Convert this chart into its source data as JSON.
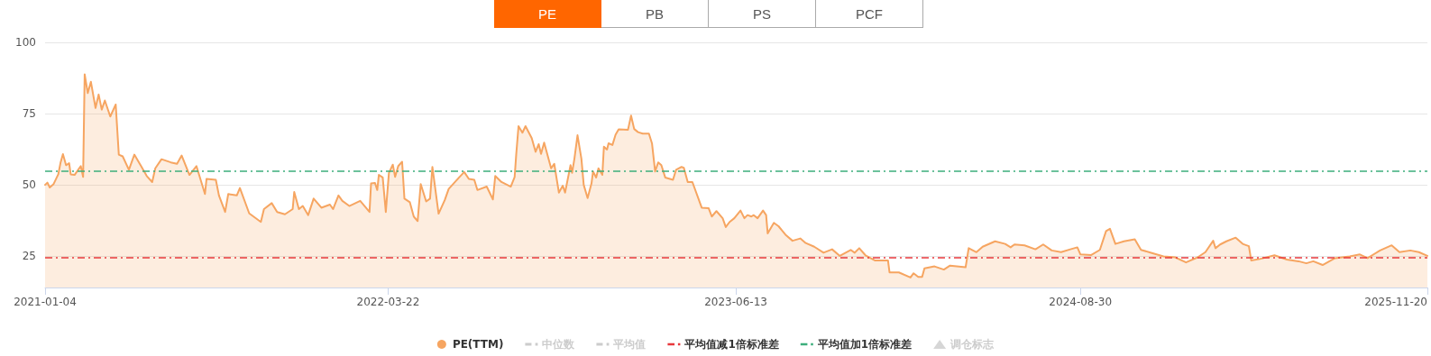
{
  "chart_data": {
    "type": "area",
    "annotations": [
      "PE",
      "PB",
      "PS",
      "PCF"
    ],
    "xlim": [
      "2021-01-04",
      "2025-11-20"
    ],
    "xticks": [
      "2021-01-04",
      "2022-03-22",
      "2023-06-13",
      "2024-08-30",
      "2025-11-20"
    ],
    "ylim": [
      14,
      100
    ],
    "yticks": [
      25,
      50,
      75,
      100
    ],
    "grid": "y",
    "legend": "bottom",
    "series": [
      {
        "name": "PE(TTM)",
        "color": "#f6a561",
        "x": [
          "2021-01-04",
          "2021-01-07",
          "2021-01-10",
          "2021-01-15",
          "2021-01-21",
          "2021-01-24",
          "2021-01-27",
          "2021-01-31",
          "2021-02-04",
          "2021-02-06",
          "2021-02-11",
          "2021-02-19",
          "2021-02-22",
          "2021-02-24",
          "2021-02-28",
          "2021-03-04",
          "2021-03-10",
          "2021-03-14",
          "2021-03-18",
          "2021-03-22",
          "2021-03-29",
          "2021-04-05",
          "2021-04-09",
          "2021-04-14",
          "2021-04-22",
          "2021-04-29",
          "2021-05-07",
          "2021-05-15",
          "2021-05-22",
          "2021-05-26",
          "2021-06-03",
          "2021-06-15",
          "2021-06-23",
          "2021-06-29",
          "2021-07-09",
          "2021-07-18",
          "2021-07-29",
          "2021-07-31",
          "2021-08-12",
          "2021-08-16",
          "2021-08-24",
          "2021-08-28",
          "2021-09-08",
          "2021-09-12",
          "2021-09-24",
          "2021-10-09",
          "2021-10-13",
          "2021-10-23",
          "2021-10-30",
          "2021-11-09",
          "2021-11-19",
          "2021-11-21",
          "2021-11-27",
          "2021-12-02",
          "2021-12-09",
          "2021-12-16",
          "2021-12-26",
          "2022-01-06",
          "2022-01-10",
          "2022-01-17",
          "2022-01-22",
          "2022-01-31",
          "2022-02-14",
          "2022-02-26",
          "2022-02-28",
          "2022-03-05",
          "2022-03-08",
          "2022-03-10",
          "2022-03-15",
          "2022-03-19",
          "2022-03-23",
          "2022-03-28",
          "2022-03-31",
          "2022-04-04",
          "2022-04-09",
          "2022-04-12",
          "2022-04-19",
          "2022-04-24",
          "2022-04-29",
          "2022-05-03",
          "2022-05-10",
          "2022-05-15",
          "2022-05-18",
          "2022-05-26",
          "2022-06-03",
          "2022-06-08",
          "2022-06-18",
          "2022-06-28",
          "2022-07-04",
          "2022-07-11",
          "2022-07-15",
          "2022-07-27",
          "2022-08-04",
          "2022-08-07",
          "2022-08-15",
          "2022-08-27",
          "2022-09-01",
          "2022-09-03",
          "2022-09-06",
          "2022-09-11",
          "2022-09-15",
          "2022-09-23",
          "2022-09-28",
          "2022-10-02",
          "2022-10-05",
          "2022-10-09",
          "2022-10-18",
          "2022-10-22",
          "2022-10-28",
          "2022-11-02",
          "2022-11-05",
          "2022-11-12",
          "2022-11-14",
          "2022-11-17",
          "2022-11-21",
          "2022-11-26",
          "2022-11-29",
          "2022-12-04",
          "2022-12-09",
          "2022-12-11",
          "2022-12-15",
          "2022-12-18",
          "2022-12-23",
          "2022-12-25",
          "2022-12-29",
          "2022-12-31",
          "2023-01-05",
          "2023-01-09",
          "2023-01-13",
          "2023-01-25",
          "2023-01-29",
          "2023-02-02",
          "2023-02-07",
          "2023-02-13",
          "2023-02-21",
          "2023-02-25",
          "2023-03-01",
          "2023-03-05",
          "2023-03-09",
          "2023-03-14",
          "2023-03-24",
          "2023-03-28",
          "2023-04-04",
          "2023-04-07",
          "2023-04-12",
          "2023-04-18",
          "2023-04-30",
          "2023-05-09",
          "2023-05-13",
          "2023-05-19",
          "2023-05-27",
          "2023-05-31",
          "2023-06-05",
          "2023-06-11",
          "2023-06-19",
          "2023-06-24",
          "2023-06-28",
          "2023-07-03",
          "2023-07-06",
          "2023-07-11",
          "2023-07-18",
          "2023-07-22",
          "2023-07-24",
          "2023-08-01",
          "2023-08-07",
          "2023-08-16",
          "2023-08-25",
          "2023-09-04",
          "2023-09-11",
          "2023-09-22",
          "2023-10-04",
          "2023-10-15",
          "2023-10-25",
          "2023-11-08",
          "2023-11-13",
          "2023-11-19",
          "2023-11-27",
          "2023-12-09",
          "2023-12-26",
          "2023-12-28",
          "2024-01-09",
          "2024-01-24",
          "2024-01-28",
          "2024-02-03",
          "2024-02-08",
          "2024-02-11",
          "2024-02-24",
          "2024-03-07",
          "2024-03-15",
          "2024-04-04",
          "2024-04-08",
          "2024-04-18",
          "2024-04-26",
          "2024-05-12",
          "2024-05-25",
          "2024-06-01",
          "2024-06-06",
          "2024-06-19",
          "2024-07-03",
          "2024-07-13",
          "2024-07-24",
          "2024-08-05",
          "2024-08-17",
          "2024-08-26",
          "2024-08-30",
          "2024-09-13",
          "2024-09-24",
          "2024-10-02",
          "2024-10-07",
          "2024-10-14",
          "2024-10-25",
          "2024-11-08",
          "2024-11-16",
          "2024-11-29",
          "2024-12-15",
          "2024-12-30",
          "2025-01-13",
          "2025-01-28",
          "2025-02-07",
          "2025-02-17",
          "2025-02-20",
          "2025-02-26",
          "2025-03-06",
          "2025-03-18",
          "2025-03-27",
          "2025-04-04",
          "2025-04-07",
          "2025-04-18",
          "2025-05-07",
          "2025-05-23",
          "2025-06-07",
          "2025-06-17",
          "2025-06-26",
          "2025-07-08",
          "2025-07-24",
          "2025-08-12",
          "2025-08-25",
          "2025-09-04",
          "2025-09-20",
          "2025-10-05",
          "2025-10-15",
          "2025-10-29",
          "2025-11-09",
          "2025-11-20"
        ],
        "values": [
          50.0,
          50.8,
          49.1,
          50.3,
          53.7,
          57.9,
          60.8,
          56.9,
          57.6,
          53.7,
          53.5,
          56.6,
          52.8,
          88.8,
          82.2,
          86.2,
          77.0,
          81.7,
          76.4,
          79.6,
          74.0,
          78.2,
          60.6,
          60.0,
          55.3,
          60.6,
          56.9,
          53.1,
          51.0,
          55.8,
          59.0,
          57.9,
          57.4,
          60.3,
          53.5,
          56.6,
          46.8,
          52.1,
          51.8,
          46.3,
          40.5,
          46.8,
          46.3,
          48.9,
          40.0,
          37.0,
          41.5,
          43.6,
          40.5,
          39.7,
          41.5,
          47.5,
          41.5,
          42.6,
          39.4,
          45.2,
          42.0,
          43.1,
          41.5,
          46.3,
          44.4,
          42.6,
          44.4,
          40.5,
          50.5,
          50.7,
          48.2,
          53.5,
          52.6,
          40.5,
          54.2,
          57.1,
          52.8,
          56.6,
          58.1,
          45.2,
          43.9,
          38.9,
          37.3,
          50.3,
          44.2,
          45.2,
          56.3,
          39.9,
          44.7,
          48.6,
          51.6,
          54.5,
          52.1,
          51.8,
          48.2,
          49.4,
          44.9,
          53.1,
          51.0,
          49.4,
          52.8,
          60.6,
          70.6,
          68.3,
          70.6,
          66.4,
          61.6,
          64.3,
          60.9,
          64.8,
          55.8,
          57.4,
          47.3,
          49.7,
          47.3,
          56.9,
          54.2,
          59.2,
          67.4,
          59.2,
          50.0,
          45.4,
          50.5,
          54.7,
          52.6,
          55.8,
          53.5,
          63.4,
          62.4,
          64.6,
          64.0,
          67.6,
          69.5,
          69.3,
          74.3,
          69.6,
          68.5,
          68.0,
          68.0,
          64.5,
          54.7,
          57.9,
          56.9,
          52.6,
          51.8,
          55.3,
          56.3,
          56.0,
          51.0,
          51.0,
          42.0,
          41.8,
          38.9,
          40.8,
          38.3,
          35.2,
          37.0,
          38.3,
          41.0,
          38.3,
          39.4,
          38.9,
          39.4,
          38.3,
          41.0,
          39.4,
          33.0,
          36.7,
          35.5,
          32.5,
          30.4,
          31.2,
          29.6,
          28.3,
          26.2,
          27.4,
          25.1,
          27.2,
          26.2,
          27.8,
          25.3,
          23.5,
          23.5,
          19.3,
          19.3,
          17.5,
          19.0,
          17.7,
          17.7,
          20.7,
          21.4,
          20.3,
          21.7,
          21.1,
          27.8,
          26.4,
          28.3,
          30.2,
          29.3,
          28.1,
          29.1,
          28.8,
          27.4,
          29.1,
          27.0,
          26.4,
          27.4,
          28.1,
          25.6,
          25.4,
          27.2,
          33.8,
          34.6,
          29.3,
          30.2,
          30.9,
          27.2,
          26.2,
          24.9,
          24.6,
          22.8,
          24.6,
          26.4,
          30.4,
          27.8,
          29.1,
          30.2,
          31.5,
          29.3,
          28.5,
          23.5,
          24.0,
          25.3,
          23.8,
          23.2,
          22.5,
          23.2,
          21.9,
          24.3,
          24.9,
          25.6,
          24.3,
          27.0,
          28.8,
          26.4,
          27.0,
          26.4,
          25.1
        ]
      },
      {
        "name": "中位数",
        "type": "line",
        "color": "#cccccc",
        "line_style": "dashed"
      },
      {
        "name": "平均值",
        "type": "line",
        "color": "#cccccc",
        "line_style": "dashed"
      },
      {
        "name": "调仓标志",
        "type": "scatter",
        "color": "#cccccc",
        "marker": "triangle"
      }
    ],
    "ref_lines": [
      {
        "axis": "y",
        "value": 24.4,
        "label": "平均值减1倍标准差",
        "color": "#e8383d",
        "line_style": "dashdot"
      },
      {
        "axis": "y",
        "value": 55.0,
        "label": "平均值加1倍标准差",
        "color": "#3dae7c",
        "line_style": "dashdot"
      }
    ]
  }
}
